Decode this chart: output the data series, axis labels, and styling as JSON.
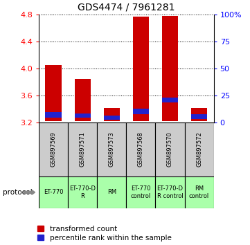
{
  "title": "GDS4474 / 7961281",
  "samples": [
    "GSM897569",
    "GSM897571",
    "GSM897573",
    "GSM897568",
    "GSM897570",
    "GSM897572"
  ],
  "protocols": [
    "ET-770",
    "ET-770-D\nR",
    "RM",
    "ET-770\ncontrol",
    "ET-770-D\nR control",
    "RM\ncontrol"
  ],
  "red_top": [
    4.05,
    3.85,
    3.42,
    4.77,
    4.78,
    3.42
  ],
  "red_bottom": [
    3.22,
    3.22,
    3.22,
    3.22,
    3.22,
    3.22
  ],
  "blue_top": [
    3.355,
    3.335,
    3.3,
    3.405,
    3.565,
    3.325
  ],
  "blue_bottom": [
    3.27,
    3.27,
    3.245,
    3.325,
    3.495,
    3.255
  ],
  "ylim": [
    3.2,
    4.8
  ],
  "yticks_left": [
    3.2,
    3.6,
    4.0,
    4.4,
    4.8
  ],
  "yticks_right": [
    0,
    25,
    50,
    75,
    100
  ],
  "right_tick_labels": [
    "0",
    "25",
    "50",
    "75",
    "100%"
  ],
  "bar_width": 0.55,
  "bar_color_red": "#cc0000",
  "bar_color_blue": "#2222cc",
  "bg_sample_row": "#cccccc",
  "bg_protocol_row": "#aaffaa",
  "title_fontsize": 10,
  "sample_fontsize": 6,
  "protocol_fontsize": 6,
  "legend_fontsize": 7.5,
  "protocol_label": "protocol"
}
